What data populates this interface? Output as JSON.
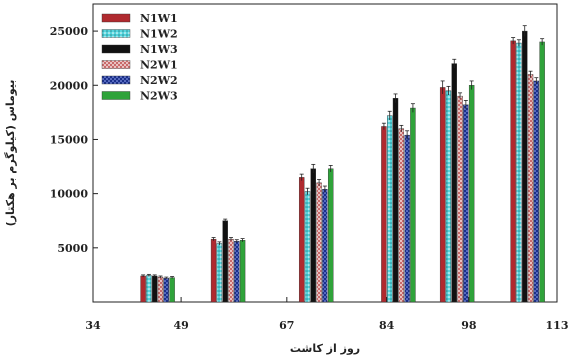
{
  "chart_data": {
    "type": "bar",
    "title": "",
    "xlabel": "روز از کاشت",
    "ylabel": "بیوماس (کیلوگرم بر هکتار)",
    "x_ticks": [
      "34",
      "49",
      "67",
      "84",
      "98",
      "113"
    ],
    "y_ticks": [
      "5000",
      "10000",
      "15000",
      "20000",
      "25000"
    ],
    "xlim": [
      34,
      113
    ],
    "ylim": [
      0,
      27500
    ],
    "groups": [
      {
        "x": 45
      },
      {
        "x": 57
      },
      {
        "x": 72
      },
      {
        "x": 86
      },
      {
        "x": 96
      },
      {
        "x": 108
      }
    ],
    "series": [
      {
        "name": "N1W1",
        "color": "#b02a2f",
        "pattern": "solid",
        "values": [
          2400,
          5800,
          11500,
          16200,
          19800,
          24100
        ],
        "errors": [
          100,
          150,
          300,
          300,
          600,
          300
        ]
      },
      {
        "name": "N1W2",
        "color": "#55d4dc",
        "pattern": "dots",
        "values": [
          2450,
          5400,
          10200,
          17200,
          19500,
          23900
        ],
        "errors": [
          100,
          150,
          300,
          400,
          400,
          300
        ]
      },
      {
        "name": "N1W3",
        "color": "#111111",
        "pattern": "solid",
        "values": [
          2400,
          7500,
          12300,
          18800,
          22000,
          25000
        ],
        "errors": [
          100,
          150,
          400,
          400,
          400,
          500
        ]
      },
      {
        "name": "N2W1",
        "color": "#c86a6a",
        "pattern": "dots",
        "values": [
          2300,
          5800,
          11000,
          16000,
          19000,
          21000
        ],
        "errors": [
          100,
          150,
          300,
          300,
          300,
          300
        ]
      },
      {
        "name": "N2W2",
        "color": "#1a2f8a",
        "pattern": "dots",
        "values": [
          2200,
          5600,
          10400,
          15400,
          18200,
          20400
        ],
        "errors": [
          100,
          150,
          300,
          400,
          400,
          300
        ]
      },
      {
        "name": "N2W3",
        "color": "#2fa33a",
        "pattern": "solid",
        "values": [
          2250,
          5700,
          12300,
          17900,
          20000,
          24000
        ],
        "errors": [
          100,
          150,
          300,
          400,
          400,
          300
        ]
      }
    ],
    "legend_position": "top-left",
    "grid": false
  }
}
